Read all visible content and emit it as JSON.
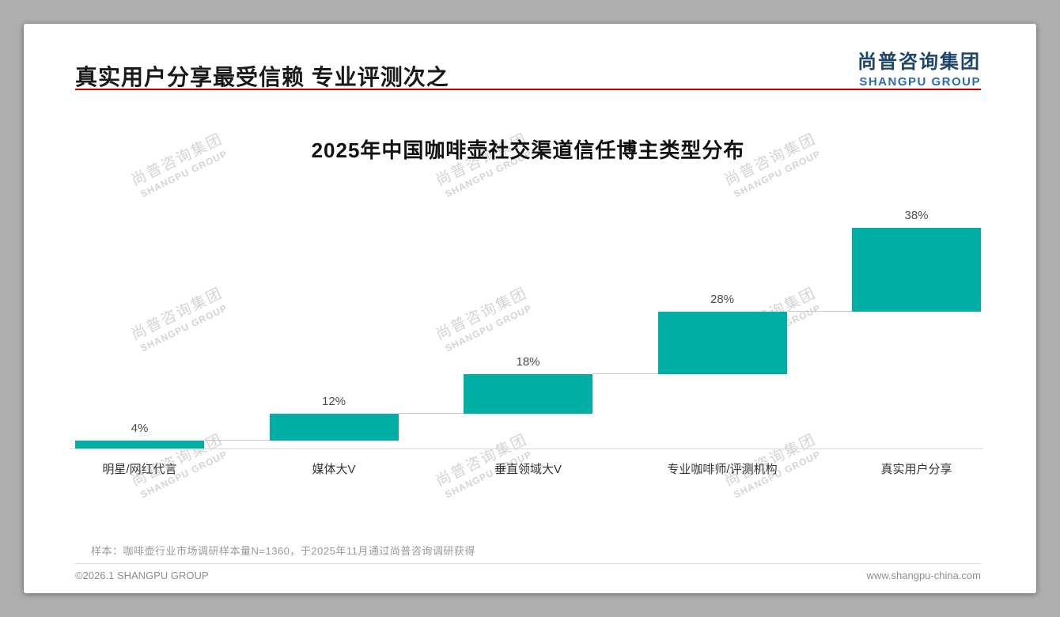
{
  "header": {
    "heading": "真实用户分享最受信赖 专业评测次之",
    "logo_cn": "尚普咨询集团",
    "logo_en": "SHANGPU GROUP"
  },
  "watermark": {
    "cn": "尚普咨询集团",
    "en": "SHANGPU GROUP"
  },
  "chart_data": {
    "type": "bar",
    "variant": "waterfall-staircase",
    "title": "2025年中国咖啡壶社交渠道信任博主类型分布",
    "categories": [
      "明星/网红代言",
      "媒体大V",
      "垂直领域大V",
      "专业咖啡师/评测机构",
      "真实用户分享"
    ],
    "values": [
      4,
      12,
      18,
      28,
      38
    ],
    "data_labels": [
      "4%",
      "12%",
      "18%",
      "28%",
      "38%"
    ],
    "cumulative_start": [
      0,
      4,
      16,
      34,
      62
    ],
    "ylim": [
      0,
      100
    ],
    "bar_color": "#00aea4",
    "legend": "none",
    "grid": "off"
  },
  "footnote": "样本：咖啡壶行业市场调研样本量N=1360，于2025年11月通过尚普咨询调研获得",
  "footer": {
    "left": "©2026.1 SHANGPU GROUP",
    "right": "www.shangpu-china.com"
  },
  "colors": {
    "bar_teal": "#00aea4",
    "accent_red": "#c00000",
    "brand_blue": "#2c6bae",
    "brand_navy": "#1f4568",
    "watermark_gray": "#d4d4d4"
  }
}
